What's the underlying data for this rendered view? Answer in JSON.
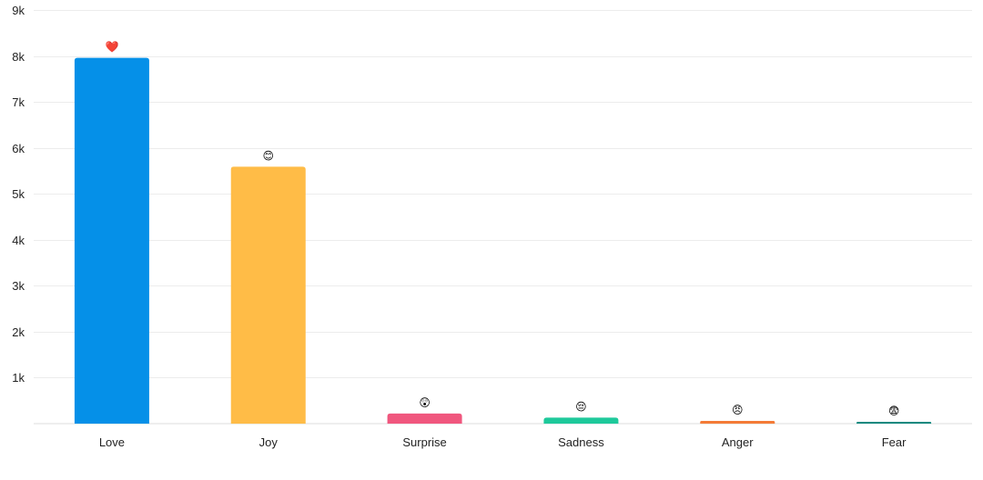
{
  "chart_data": {
    "type": "bar",
    "categories": [
      "Love",
      "Joy",
      "Surprise",
      "Sadness",
      "Anger",
      "Fear"
    ],
    "values": [
      7960,
      5590,
      220,
      130,
      60,
      40
    ],
    "emoji_labels": [
      "❤️",
      "😊",
      "😲",
      "😔",
      "😠",
      "😨"
    ],
    "colors": [
      "#0590e8",
      "#ffbc47",
      "#f0577e",
      "#1ec99b",
      "#f47b37",
      "#118a80"
    ],
    "ylim": [
      0,
      9000
    ],
    "yticks": [
      1000,
      2000,
      3000,
      4000,
      5000,
      6000,
      7000,
      8000,
      9000
    ],
    "ytick_labels": [
      "1k",
      "2k",
      "3k",
      "4k",
      "5k",
      "6k",
      "7k",
      "8k",
      "9k"
    ],
    "grid": true,
    "title": "",
    "xlabel": "",
    "ylabel": ""
  }
}
